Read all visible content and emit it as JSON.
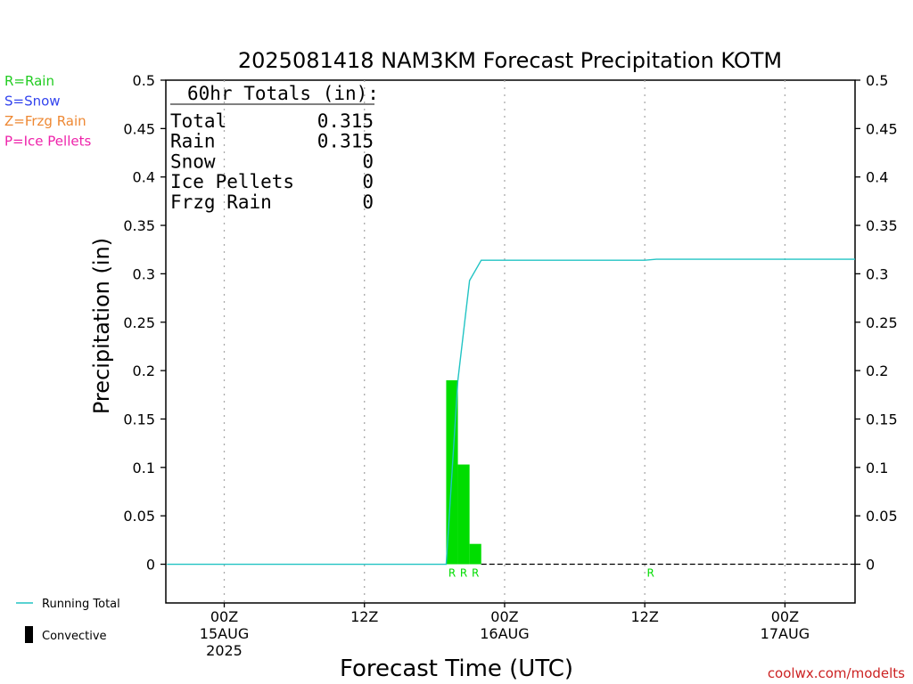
{
  "title": "2025081418 NAM3KM Forecast Precipitation KOTM",
  "footer_credit": "coolwx.com/modelts",
  "legend_codes": [
    {
      "text": "R=Rain",
      "color": "#22cc22"
    },
    {
      "text": "S=Snow",
      "color": "#3344ee"
    },
    {
      "text": "Z=Frzg Rain",
      "color": "#ee8833"
    },
    {
      "text": "P=Ice Pellets",
      "color": "#ee22aa"
    }
  ],
  "legend_bottom": {
    "running_total": "Running Total",
    "convective": "Convective"
  },
  "totals_box": {
    "header": "60hr Totals (in):",
    "rows": [
      {
        "label": "Total",
        "value": "0.315"
      },
      {
        "label": "Rain",
        "value": "0.315"
      },
      {
        "label": "Snow",
        "value": "0"
      },
      {
        "label": "Ice Pellets",
        "value": "0"
      },
      {
        "label": "Frzg Rain",
        "value": "0"
      }
    ]
  },
  "colors": {
    "rain": "#00dd00",
    "running_total": "#22c4c4",
    "grid": "#aaaaaa"
  },
  "chart_data": {
    "type": "bar",
    "xlabel": "Forecast Time (UTC)",
    "ylabel": "Precipitation (in)",
    "ylim": [
      -0.04,
      0.5
    ],
    "xlim": [
      -5,
      54
    ],
    "yticks": [
      "0",
      "0.05",
      "0.1",
      "0.15",
      "0.2",
      "0.25",
      "0.3",
      "0.35",
      "0.4",
      "0.45",
      "0.5"
    ],
    "xticks": [
      {
        "hour": 0,
        "label": "00Z",
        "sub": [
          "15AUG",
          "2025"
        ]
      },
      {
        "hour": 12,
        "label": "12Z",
        "sub": []
      },
      {
        "hour": 24,
        "label": "00Z",
        "sub": [
          "16AUG"
        ]
      },
      {
        "hour": 36,
        "label": "12Z",
        "sub": []
      },
      {
        "hour": 48,
        "label": "00Z",
        "sub": [
          "17AUG"
        ]
      }
    ],
    "grid": "dotted vertical at x ticks",
    "bars": [
      {
        "hour": 19.5,
        "value": 0.19,
        "type": "Rain"
      },
      {
        "hour": 20.5,
        "value": 0.103,
        "type": "Rain"
      },
      {
        "hour": 21.5,
        "value": 0.021,
        "type": "Rain"
      }
    ],
    "ptype_markers": [
      {
        "hour": 19.5,
        "label": "R"
      },
      {
        "hour": 20.5,
        "label": "R"
      },
      {
        "hour": 21.5,
        "label": "R"
      },
      {
        "hour": 36.5,
        "label": "R"
      }
    ],
    "running_total": {
      "name": "Running Total",
      "x": [
        -5,
        19,
        20,
        21,
        22,
        36,
        37,
        54
      ],
      "y": [
        0,
        0,
        0.19,
        0.293,
        0.314,
        0.314,
        0.315,
        0.315
      ]
    }
  }
}
